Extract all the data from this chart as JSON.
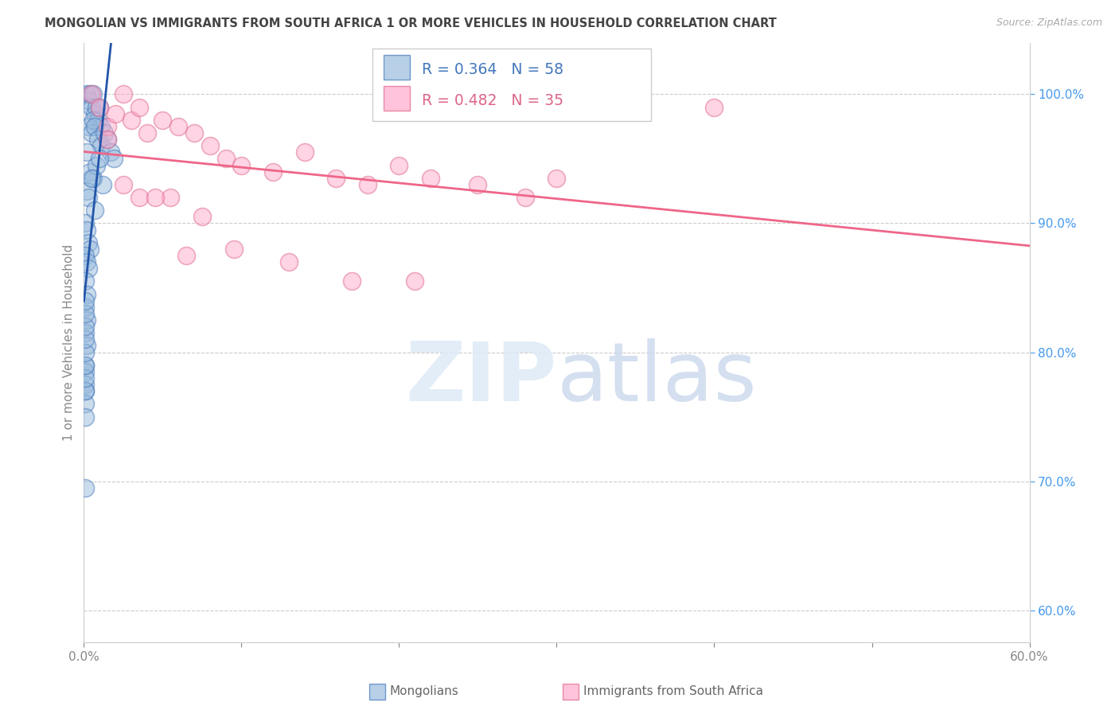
{
  "title": "MONGOLIAN VS IMMIGRANTS FROM SOUTH AFRICA 1 OR MORE VEHICLES IN HOUSEHOLD CORRELATION CHART",
  "source": "Source: ZipAtlas.com",
  "ylabel": "1 or more Vehicles in Household",
  "blue_label": "Mongolians",
  "pink_label": "Immigrants from South Africa",
  "legend_r_blue": "0.364",
  "legend_n_blue": "58",
  "legend_r_pink": "0.482",
  "legend_n_pink": "35",
  "blue_face_color": "#99BBDD",
  "blue_edge_color": "#4477BB",
  "pink_face_color": "#FFAACC",
  "pink_edge_color": "#DD6688",
  "blue_line_color": "#2255AA",
  "pink_line_color": "#EE6688",
  "right_tick_color": "#4499EE",
  "y_ticks": [
    0.6,
    0.7,
    0.8,
    0.9,
    1.0
  ],
  "y_tick_labels_right": [
    "60.0%",
    "70.0%",
    "80.0%",
    "90.0%",
    "100.0%"
  ],
  "x_ticks": [
    0.0,
    0.1,
    0.2,
    0.3,
    0.4,
    0.5,
    0.6
  ],
  "x_tick_labels": [
    "0.0%",
    "",
    "",
    "",
    "",
    "",
    "60.0%"
  ],
  "blue_x": [
    0.002,
    0.003,
    0.004,
    0.005,
    0.006,
    0.007,
    0.008,
    0.009,
    0.01,
    0.011,
    0.003,
    0.005,
    0.006,
    0.007,
    0.009,
    0.011,
    0.013,
    0.015,
    0.017,
    0.019,
    0.002,
    0.004,
    0.006,
    0.008,
    0.01,
    0.012,
    0.002,
    0.003,
    0.005,
    0.007,
    0.001,
    0.002,
    0.003,
    0.004,
    0.001,
    0.002,
    0.003,
    0.001,
    0.002,
    0.001,
    0.002,
    0.001,
    0.002,
    0.001,
    0.001,
    0.001,
    0.001,
    0.001,
    0.001,
    0.001,
    0.001,
    0.001,
    0.001,
    0.001,
    0.001,
    0.001,
    0.001,
    0.001
  ],
  "blue_y": [
    1.0,
    0.995,
    1.0,
    0.99,
    1.0,
    0.985,
    0.99,
    0.98,
    0.99,
    0.975,
    0.975,
    0.97,
    0.98,
    0.975,
    0.965,
    0.96,
    0.97,
    0.965,
    0.955,
    0.95,
    0.955,
    0.94,
    0.935,
    0.945,
    0.95,
    0.93,
    0.925,
    0.92,
    0.935,
    0.91,
    0.9,
    0.895,
    0.885,
    0.88,
    0.875,
    0.87,
    0.865,
    0.855,
    0.845,
    0.835,
    0.825,
    0.815,
    0.805,
    0.79,
    0.785,
    0.775,
    0.77,
    0.76,
    0.75,
    0.77,
    0.78,
    0.79,
    0.8,
    0.81,
    0.82,
    0.83,
    0.84,
    0.695
  ],
  "pink_x": [
    0.005,
    0.01,
    0.015,
    0.02,
    0.025,
    0.03,
    0.035,
    0.04,
    0.05,
    0.06,
    0.07,
    0.08,
    0.09,
    0.1,
    0.12,
    0.14,
    0.16,
    0.18,
    0.2,
    0.22,
    0.25,
    0.28,
    0.3,
    0.4,
    0.015,
    0.025,
    0.035,
    0.055,
    0.075,
    0.095,
    0.13,
    0.17,
    0.21,
    0.045,
    0.065
  ],
  "pink_y": [
    1.0,
    0.99,
    0.975,
    0.985,
    1.0,
    0.98,
    0.99,
    0.97,
    0.98,
    0.975,
    0.97,
    0.96,
    0.95,
    0.945,
    0.94,
    0.955,
    0.935,
    0.93,
    0.945,
    0.935,
    0.93,
    0.92,
    0.935,
    0.99,
    0.965,
    0.93,
    0.92,
    0.92,
    0.905,
    0.88,
    0.87,
    0.855,
    0.855,
    0.92,
    0.875
  ]
}
